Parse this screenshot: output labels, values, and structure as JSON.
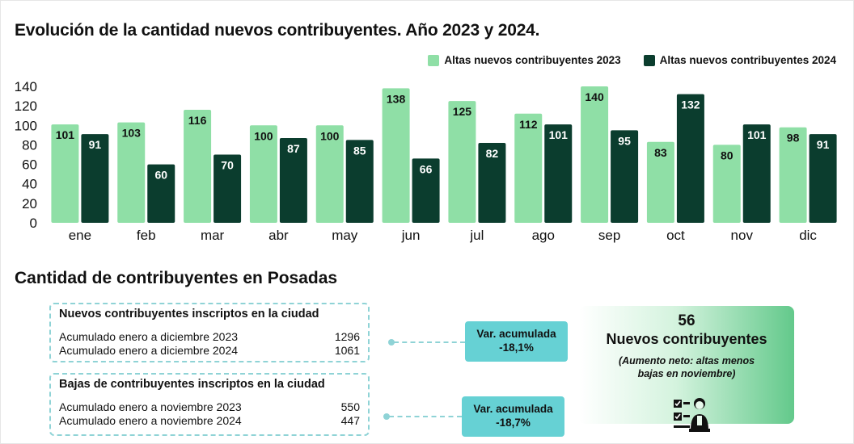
{
  "chart_data": {
    "type": "bar",
    "title": "Evolución de la cantidad nuevos contribuyentes. Año 2023 y 2024.",
    "categories": [
      "ene",
      "feb",
      "mar",
      "abr",
      "may",
      "jun",
      "jul",
      "ago",
      "sep",
      "oct",
      "nov",
      "dic"
    ],
    "series": [
      {
        "name": "Altas nuevos contribuyentes 2023",
        "values": [
          101,
          103,
          116,
          100,
          100,
          138,
          125,
          112,
          140,
          83,
          80,
          98
        ]
      },
      {
        "name": "Altas nuevos contribuyentes 2024",
        "values": [
          91,
          60,
          70,
          87,
          85,
          66,
          82,
          101,
          95,
          132,
          101,
          91
        ]
      }
    ],
    "ylim": [
      0,
      140
    ],
    "yticks": [
      0,
      20,
      40,
      60,
      80,
      100,
      120,
      140
    ],
    "grid": false,
    "legend": "top-right",
    "colors": {
      "series_2023": "#8fdfa6",
      "series_2024": "#0b3d2e"
    }
  },
  "summary": {
    "title": "Cantidad de contribuyentes en Posadas",
    "nuevos": {
      "title": "Nuevos contribuyentes inscriptos en la ciudad",
      "rows": [
        {
          "label": "Acumulado enero a diciembre 2023",
          "value": "1296"
        },
        {
          "label": "Acumulado enero a diciembre 2024",
          "value": "1061"
        }
      ],
      "var_label": "Var. acumulada",
      "var_value": "-18,1%"
    },
    "bajas": {
      "title": "Bajas de contribuyentes inscriptos en la ciudad",
      "rows": [
        {
          "label": "Acumulado enero a noviembre 2023",
          "value": "550"
        },
        {
          "label": "Acumulado enero a noviembre 2024",
          "value": "447"
        }
      ],
      "var_label": "Var. acumulada",
      "var_value": "-18,7%"
    },
    "net": {
      "number": "56",
      "label": "Nuevos contribuyentes",
      "note": "(Aumento neto: altas menos bajas en noviembre)",
      "icon": "checklist-person-icon"
    },
    "colors": {
      "accent": "#66d1d4",
      "border": "#8fd3d6",
      "net_green": "#63c98b"
    }
  }
}
